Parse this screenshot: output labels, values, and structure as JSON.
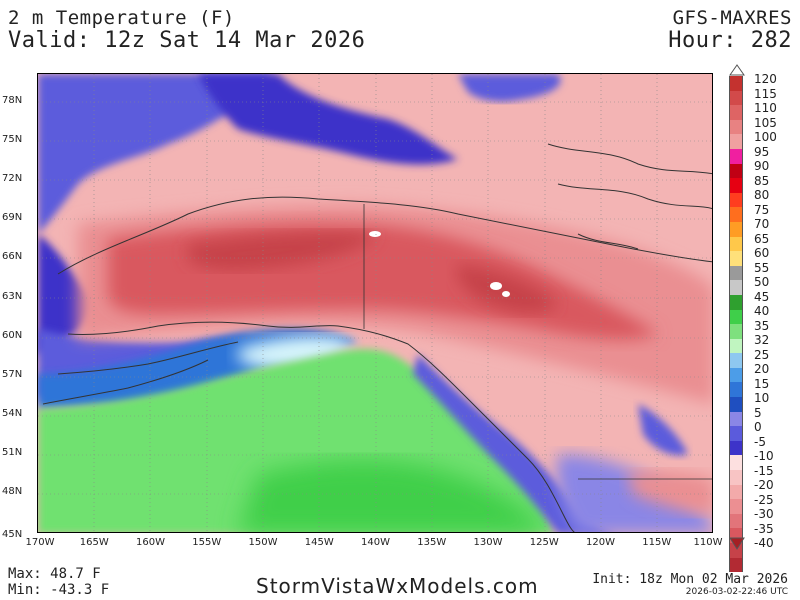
{
  "header": {
    "title_line1": "2 m Temperature (F)",
    "title_line2": "Valid: 12z Sat 14 Mar 2026",
    "model": "GFS-MAXRES",
    "forecast_hour": "Hour: 282"
  },
  "map": {
    "lat_labels": [
      "78N",
      "75N",
      "72N",
      "69N",
      "66N",
      "63N",
      "60N",
      "57N",
      "54N",
      "51N",
      "48N",
      "45N"
    ],
    "lon_labels": [
      "170W",
      "165W",
      "160W",
      "155W",
      "150W",
      "145W",
      "140W",
      "135W",
      "130W",
      "125W",
      "120W",
      "115W",
      "110W"
    ],
    "colors": {
      "deep_blue": "#3d33c9",
      "purple_blue": "#5b5bdc",
      "light_purple": "#8a86e6",
      "blue": "#2f75d8",
      "light_blue": "#8ec8f0",
      "pale_cyan": "#d8f6fb",
      "green": "#6fe16f",
      "dark_green": "#3fcf4a",
      "pink_light": "#f3b4b4",
      "pink": "#ea8f92",
      "red": "#d9585f",
      "dark_red": "#c64249",
      "border": "#333333"
    }
  },
  "colorbar": {
    "labels": [
      "120",
      "115",
      "110",
      "105",
      "100",
      "95",
      "90",
      "85",
      "80",
      "75",
      "70",
      "65",
      "60",
      "55",
      "50",
      "45",
      "40",
      "35",
      "32",
      "25",
      "20",
      "15",
      "10",
      "5",
      "0",
      "-5",
      "-10",
      "-15",
      "-20",
      "-25",
      "-30",
      "-35",
      "-40"
    ],
    "colors": [
      "#c4322f",
      "#d24a4a",
      "#de6464",
      "#e88282",
      "#f0a0a0",
      "#f01fa0",
      "#c00014",
      "#e60012",
      "#ff3d1f",
      "#ff6e1e",
      "#ff9c24",
      "#ffc84a",
      "#ffe07a",
      "#9a9a9a",
      "#c8c8c8",
      "#2fa02f",
      "#3fcf4a",
      "#7ee07e",
      "#c0f5c0",
      "#8ec8f0",
      "#4c9de8",
      "#2f75d8",
      "#1f4fc0",
      "#8a86e6",
      "#5b5bdc",
      "#3d33c9",
      "#fde0e0",
      "#f8c4c4",
      "#f3aaaa",
      "#ec8f92",
      "#e2747a",
      "#d9585f",
      "#c64249",
      "#b22a33"
    ]
  },
  "footer": {
    "max": "Max: 48.7 F",
    "min": "Min: -43.3 F",
    "site": "StormVistaWxModels.com",
    "init": "Init: 18z Mon 02 Mar 2026",
    "stamp": "2026-03-02-22:46 UTC"
  }
}
